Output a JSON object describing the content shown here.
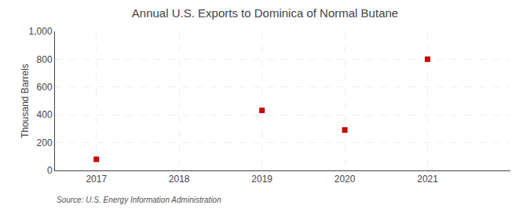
{
  "chart_data": {
    "type": "scatter",
    "title": "Annual U.S. Exports to Dominica of Normal Butane",
    "ylabel": "Thousand Barrels",
    "source": "Source: U.S. Energy Information Administration",
    "x": [
      2017,
      2019,
      2020,
      2021
    ],
    "values": [
      80,
      432,
      291,
      800
    ],
    "color": "#cc0000",
    "marker": "square",
    "xlim": [
      2016.5,
      2022.0
    ],
    "xticks": [
      2017,
      2018,
      2019,
      2020,
      2021
    ],
    "ylim": [
      0,
      1000
    ],
    "yticks": [
      0,
      200,
      400,
      600,
      800,
      {
        "value": 1000,
        "label": "1,000"
      }
    ],
    "grid": true
  }
}
